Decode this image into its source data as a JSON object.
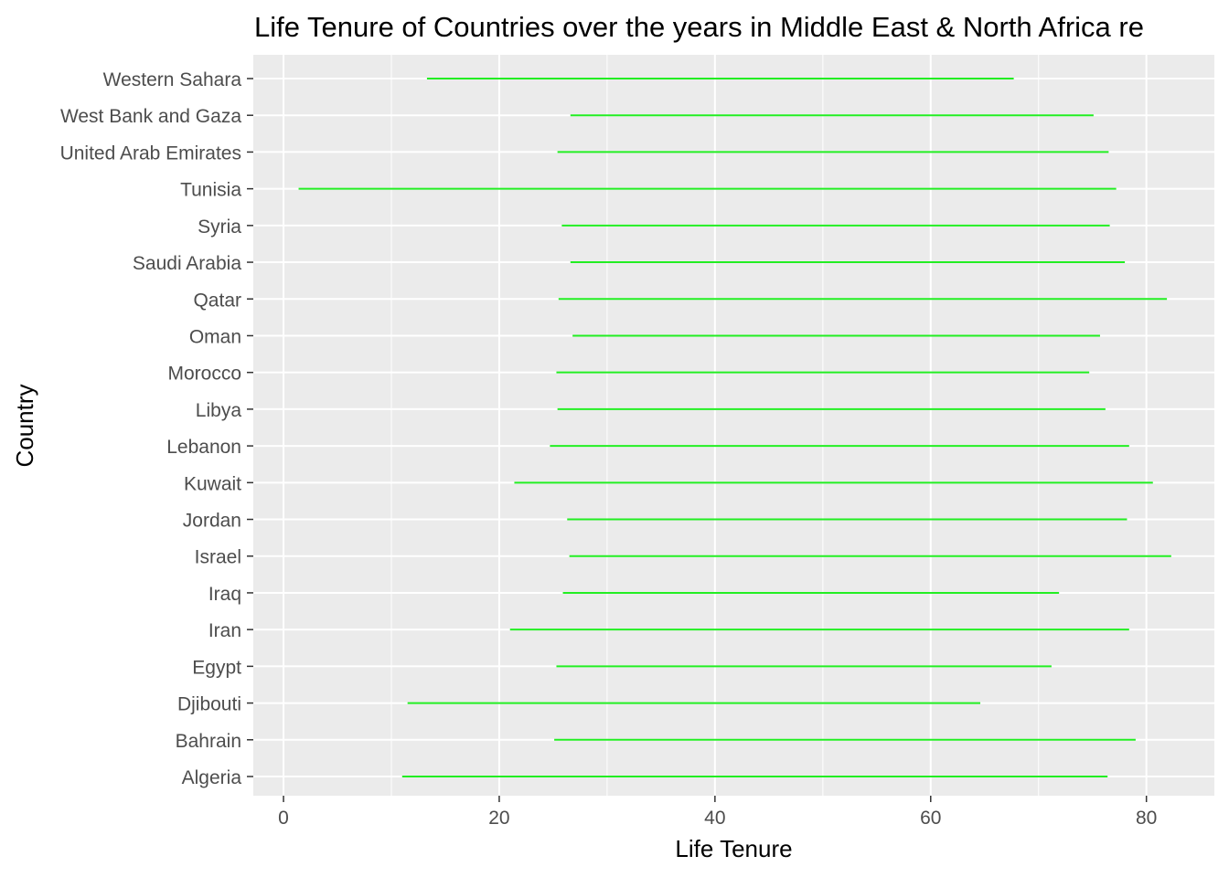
{
  "chart_data": {
    "type": "range",
    "title": "Life Tenure of Countries over the years in Middle East & North Africa re",
    "xlabel": "Life Tenure",
    "ylabel": "Country",
    "xlim": [
      -2.8,
      86.3
    ],
    "x_ticks": [
      0,
      20,
      40,
      60,
      80
    ],
    "x_minor_ticks": [
      10,
      30,
      50,
      70
    ],
    "grid": true,
    "legend": "none",
    "colors": {
      "panel": "#ebebeb",
      "grid": "#ffffff",
      "segment": "#22ee22",
      "tick_text": "#4d4d4d",
      "tick_mark": "#333333"
    },
    "categories": [
      "Algeria",
      "Bahrain",
      "Djibouti",
      "Egypt",
      "Iran",
      "Iraq",
      "Israel",
      "Jordan",
      "Kuwait",
      "Lebanon",
      "Libya",
      "Morocco",
      "Oman",
      "Qatar",
      "Saudi Arabia",
      "Syria",
      "Tunisia",
      "United Arab Emirates",
      "West Bank and Gaza",
      "Western Sahara"
    ],
    "series": [
      {
        "min": [
          11.0,
          25.1,
          11.5,
          25.3,
          21.0,
          25.9,
          26.5,
          26.3,
          21.4,
          24.7,
          25.4,
          25.3,
          26.8,
          25.5,
          26.6,
          25.8,
          1.4,
          25.4,
          26.6,
          13.3
        ],
        "max": [
          76.4,
          79.0,
          64.6,
          71.2,
          78.4,
          71.9,
          82.3,
          78.2,
          80.6,
          78.4,
          76.2,
          74.7,
          75.7,
          81.9,
          78.0,
          76.6,
          77.2,
          76.5,
          75.1,
          67.7
        ]
      }
    ]
  }
}
